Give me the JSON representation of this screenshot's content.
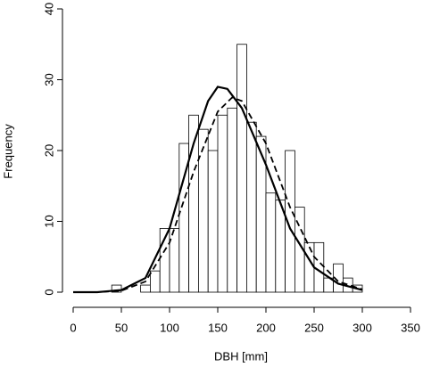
{
  "chart_data": {
    "type": "histogram",
    "x_label": "DBH [mm]",
    "y_label": "Frequency",
    "bins": [
      40,
      50,
      60,
      70,
      80,
      90,
      100,
      110,
      120,
      130,
      140,
      150,
      160,
      170,
      180,
      190,
      200,
      210,
      220,
      230,
      240,
      250,
      260,
      270,
      280,
      290,
      300
    ],
    "counts": [
      1,
      0,
      0,
      1,
      3,
      9,
      9,
      21,
      25,
      23,
      20,
      25,
      26,
      35,
      24,
      22,
      14,
      13,
      20,
      12,
      7,
      7,
      2,
      4,
      2,
      1
    ],
    "bar_fill": "#ffffff",
    "bar_edge": "#000000",
    "curves": [
      {
        "style": "solid",
        "color": "#000000",
        "x": [
          0,
          25,
          50,
          75,
          100,
          125,
          140,
          150,
          160,
          175,
          200,
          225,
          250,
          275,
          300
        ],
        "values": [
          0,
          0,
          0.3,
          2,
          9,
          21,
          27,
          29,
          28.7,
          26,
          18,
          9,
          3.5,
          1.2,
          0.3
        ]
      },
      {
        "style": "dashed",
        "color": "#000000",
        "x": [
          0,
          25,
          50,
          75,
          100,
          125,
          150,
          165,
          175,
          200,
          225,
          250,
          275,
          300
        ],
        "values": [
          0,
          0,
          0.2,
          1.5,
          7,
          17,
          25.5,
          27.5,
          27,
          21,
          12,
          5,
          1.5,
          0.4
        ]
      }
    ],
    "xlim": [
      0,
      350
    ],
    "ylim": [
      0,
      40
    ],
    "xticks": [
      0,
      50,
      100,
      150,
      200,
      250,
      300,
      350
    ],
    "yticks": [
      0,
      10,
      20,
      30,
      40
    ]
  }
}
